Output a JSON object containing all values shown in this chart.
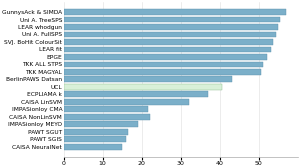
{
  "categories": [
    "GunnysAck & SIMDA",
    "Uni A. TreeSPS",
    "LEAR whodgun",
    "Uni A. FullSPS",
    "SVJ. BoHit ColourSit",
    "LEAR fit",
    "EPGE",
    "TKK ALL STPS",
    "TKK MAGYAL",
    "BerlinPAWS Datsan",
    "UCL",
    "ECPLIAMA k",
    "CAISA LinSVM",
    "IMPASionloy CMA",
    "CAISA NonLinSVM",
    "IMPASionloy MEYO",
    "PAWT SGUT",
    "PAWT SGIS",
    "CAISA NeuralNet"
  ],
  "values": [
    57.0,
    55.5,
    55.0,
    54.5,
    53.5,
    53.0,
    52.0,
    51.0,
    50.5,
    43.0,
    40.5,
    37.0,
    32.0,
    21.5,
    22.0,
    19.0,
    16.5,
    16.0,
    15.0
  ],
  "bar_colors": [
    "#7bafc9",
    "#7bafc9",
    "#7bafc9",
    "#7bafc9",
    "#7bafc9",
    "#7bafc9",
    "#7bafc9",
    "#7bafc9",
    "#7bafc9",
    "#7bafc9",
    "#d8f0d8",
    "#7bafc9",
    "#7bafc9",
    "#7bafc9",
    "#7bafc9",
    "#7bafc9",
    "#7bafc9",
    "#7bafc9",
    "#7bafc9"
  ],
  "bar_edge_colors": [
    "#5a90aa",
    "#5a90aa",
    "#5a90aa",
    "#5a90aa",
    "#5a90aa",
    "#5a90aa",
    "#5a90aa",
    "#5a90aa",
    "#5a90aa",
    "#5a90aa",
    "#88bb88",
    "#5a90aa",
    "#5a90aa",
    "#5a90aa",
    "#5a90aa",
    "#5a90aa",
    "#5a90aa",
    "#5a90aa",
    "#5a90aa"
  ],
  "xlim": [
    0,
    60
  ],
  "xticks": [
    0,
    10,
    20,
    30,
    40,
    50
  ],
  "background_color": "#ffffff",
  "label_fontsize": 4.2,
  "tick_fontsize": 4.5,
  "grid_color": "#dddddd",
  "bar_height": 0.78
}
